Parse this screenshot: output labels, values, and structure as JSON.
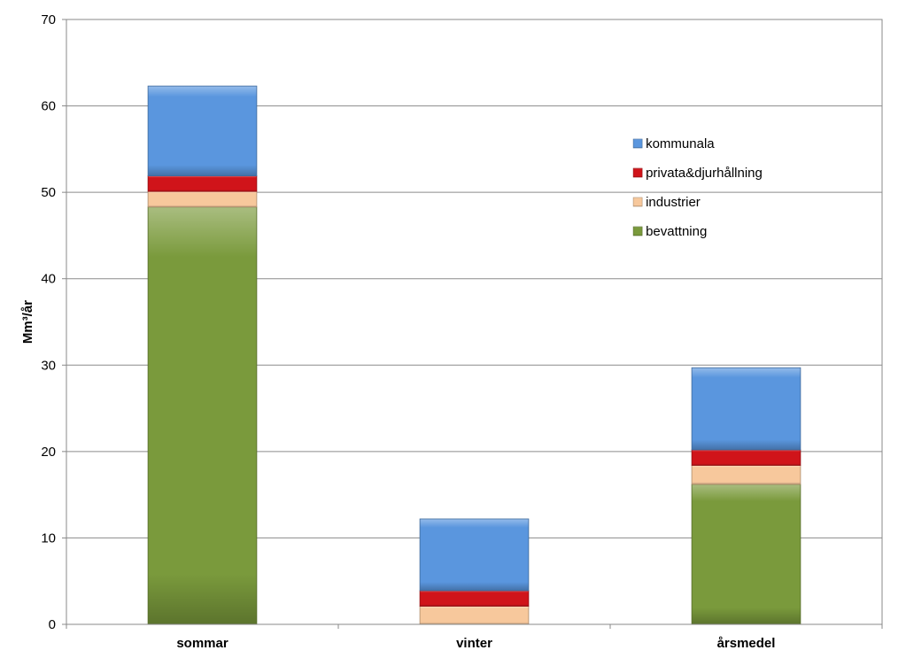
{
  "chart_data": {
    "type": "bar",
    "stacked": true,
    "categories": [
      "sommar",
      "vinter",
      "årsmedel"
    ],
    "series": [
      {
        "name": "bevattning",
        "values": [
          48.3,
          0,
          16.2
        ],
        "color": "#7a9a3c"
      },
      {
        "name": "industrier",
        "values": [
          1.8,
          2.1,
          2.2
        ],
        "color": "#f7c89c"
      },
      {
        "name": "privata&djurhållning",
        "values": [
          1.8,
          1.8,
          1.8
        ],
        "color": "#d0141a"
      },
      {
        "name": "kommunala",
        "values": [
          10.4,
          8.3,
          9.5
        ],
        "color": "#5a96de"
      }
    ],
    "title": "",
    "xlabel": "",
    "ylabel": "Mm³/år",
    "ylim": [
      0,
      70
    ],
    "yticks": [
      0,
      10,
      20,
      30,
      40,
      50,
      60,
      70
    ],
    "grid": true,
    "legend_position": "right",
    "legend_order": [
      "kommunala",
      "privata&djurhållning",
      "industrier",
      "bevattning"
    ]
  }
}
